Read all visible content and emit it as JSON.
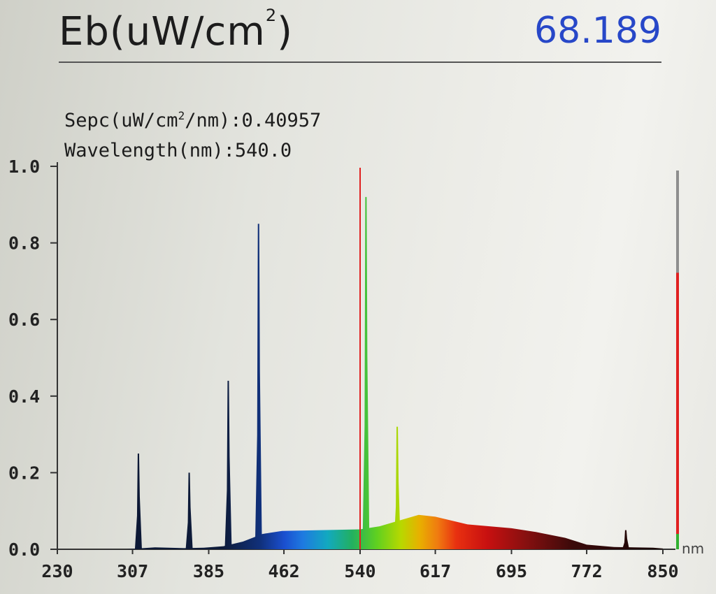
{
  "header": {
    "title_prefix": "Eb(uW/cm",
    "title_sup": "2",
    "title_suffix": ")",
    "value": "68.189"
  },
  "readout": {
    "spec_prefix": "Sepc(uW/cm",
    "spec_sup": "2",
    "spec_suffix": "/nm):0.40957",
    "wavelength": "Wavelength(nm):540.0"
  },
  "chart_data": {
    "type": "area",
    "xlim": [
      230,
      850
    ],
    "ylim": [
      0,
      1.0
    ],
    "x_ticks": [
      "230",
      "307",
      "385",
      "462",
      "540",
      "617",
      "695",
      "772",
      "850"
    ],
    "y_ticks": [
      "1.0",
      "0.8",
      "0.6",
      "0.4",
      "0.2",
      "0.0"
    ],
    "x_unit": "nm",
    "cursor_wavelength": 540.0,
    "cursor_value": 0.40957,
    "side_bar_level": 0.73,
    "peaks": [
      {
        "x": 313,
        "y": 0.25
      },
      {
        "x": 365,
        "y": 0.2
      },
      {
        "x": 405,
        "y": 0.44
      },
      {
        "x": 436,
        "y": 0.85
      },
      {
        "x": 546,
        "y": 0.92
      },
      {
        "x": 578,
        "y": 0.32
      },
      {
        "x": 812,
        "y": 0.05
      }
    ],
    "baseline": [
      [
        300,
        0.0
      ],
      [
        330,
        0.005
      ],
      [
        360,
        0.003
      ],
      [
        380,
        0.004
      ],
      [
        400,
        0.008
      ],
      [
        420,
        0.02
      ],
      [
        440,
        0.04
      ],
      [
        460,
        0.048
      ],
      [
        500,
        0.05
      ],
      [
        540,
        0.052
      ],
      [
        560,
        0.06
      ],
      [
        580,
        0.075
      ],
      [
        600,
        0.09
      ],
      [
        617,
        0.085
      ],
      [
        650,
        0.065
      ],
      [
        695,
        0.055
      ],
      [
        720,
        0.045
      ],
      [
        750,
        0.03
      ],
      [
        772,
        0.012
      ],
      [
        800,
        0.006
      ],
      [
        820,
        0.005
      ],
      [
        840,
        0.004
      ],
      [
        850,
        0.002
      ]
    ]
  }
}
